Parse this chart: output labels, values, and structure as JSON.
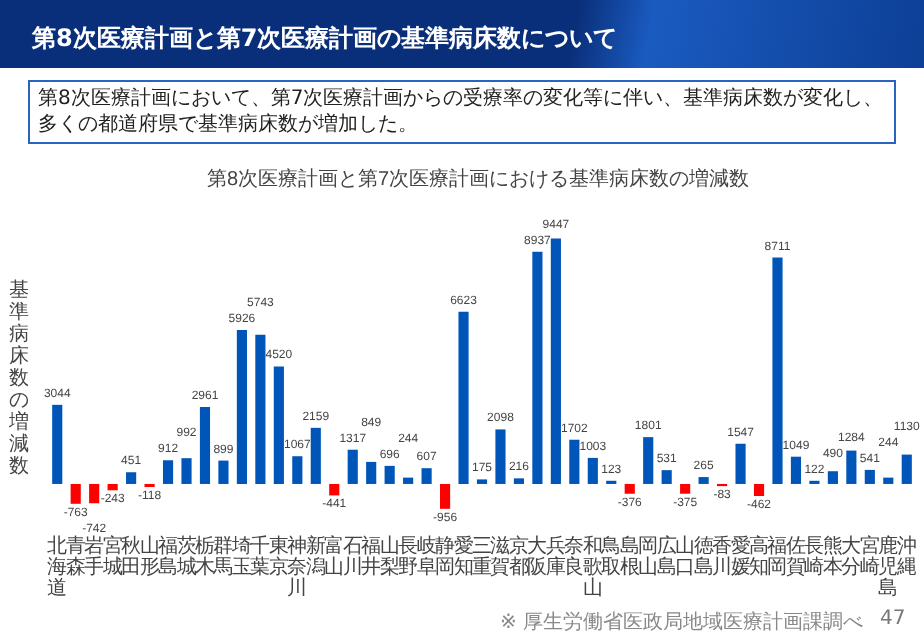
{
  "chart_data": {
    "type": "bar",
    "title": "第8次医療計画と第7次医療計画の基準病床数について",
    "subtitle": "第8次医療計画において、第7次医療計画からの受療率の変化等に伴い、基準病床数が変化し、多くの都道府県で基準病床数が増加した。",
    "ylabel": "基準病床数の増減数",
    "annotations": [
      "第8次医療計画と第7次医療計画における基準病床数の増減数",
      "※ 厚生労働省医政局地域医療計画課調べ",
      "47"
    ],
    "categories": [
      "北海道",
      "青森",
      "岩手",
      "宮城",
      "秋田",
      "山形",
      "福島",
      "茨城",
      "栃木",
      "群馬",
      "埼玉",
      "千葉",
      "東京",
      "神奈川",
      "新潟",
      "富山",
      "石川",
      "福井",
      "山梨",
      "長野",
      "岐阜",
      "静岡",
      "愛知",
      "三重",
      "滋賀",
      "京都",
      "大阪",
      "兵庫",
      "奈良",
      "和歌山",
      "鳥取",
      "島根",
      "岡山",
      "広島",
      "山口",
      "徳島",
      "香川",
      "愛媛",
      "高知",
      "福岡",
      "佐賀",
      "長崎",
      "熊本",
      "大分",
      "宮崎",
      "鹿児島",
      "沖縄"
    ],
    "values": [
      3044,
      -763,
      -742,
      -243,
      451,
      -118,
      912,
      992,
      2961,
      899,
      5926,
      5743,
      4520,
      1067,
      2159,
      -441,
      1317,
      849,
      696,
      244,
      607,
      -956,
      6623,
      175,
      2098,
      216,
      8937,
      9447,
      1702,
      1003,
      123,
      -376,
      1801,
      531,
      -375,
      265,
      -83,
      1547,
      -462,
      8711,
      1049,
      122,
      490,
      1284,
      541,
      244,
      1130
    ],
    "colors": [
      "#0056b8",
      "#ff0000",
      "#ff0000",
      "#ff0000",
      "#0056b8",
      "#ff0000",
      "#0056b8",
      "#0056b8",
      "#0056b8",
      "#0056b8",
      "#0056b8",
      "#0056b8",
      "#0056b8",
      "#0056b8",
      "#0056b8",
      "#ff0000",
      "#0056b8",
      "#0056b8",
      "#0056b8",
      "#0056b8",
      "#0056b8",
      "#ff0000",
      "#0056b8",
      "#0056b8",
      "#0056b8",
      "#0056b8",
      "#0056b8",
      "#0056b8",
      "#0056b8",
      "#0056b8",
      "#0056b8",
      "#ff0000",
      "#0056b8",
      "#0056b8",
      "#ff0000",
      "#0056b8",
      "#ff0000",
      "#0056b8",
      "#ff0000",
      "#0056b8",
      "#0056b8",
      "#0056b8",
      "#0056b8",
      "#0056b8",
      "#0056b8",
      "#0056b8",
      "#0056b8"
    ],
    "data_labels": true
  }
}
